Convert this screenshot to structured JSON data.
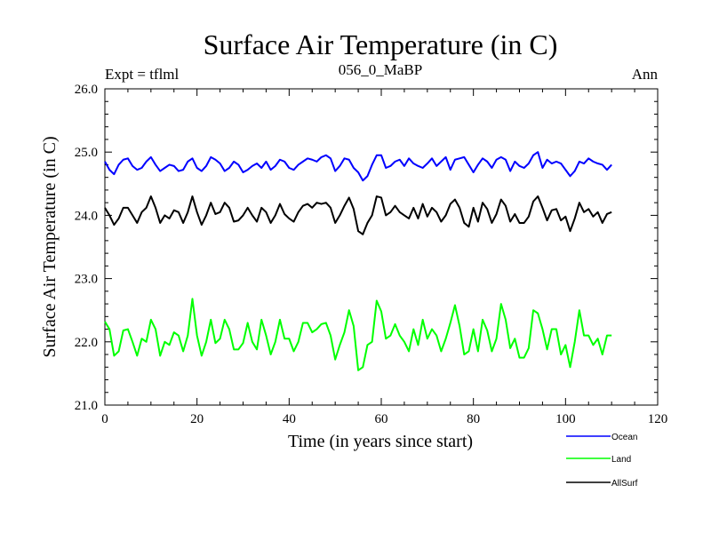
{
  "chart_data": {
    "type": "line",
    "title": "Surface Air Temperature (in C)",
    "subtitle": "056_0_MaBP",
    "left_label": "Expt = tflml",
    "right_label": "Ann",
    "xlabel": "Time (in years since start)",
    "ylabel": "Surface Air Temperature (in C)",
    "xlim": [
      0,
      120
    ],
    "ylim": [
      21.0,
      26.0
    ],
    "x_ticks": [
      0,
      20,
      40,
      60,
      80,
      100,
      120
    ],
    "x_tick_labels": [
      "0",
      "20",
      "40",
      "60",
      "80",
      "100",
      "120"
    ],
    "y_ticks": [
      21.0,
      22.0,
      23.0,
      24.0,
      25.0,
      26.0
    ],
    "y_tick_labels": [
      "21.0",
      "22.0",
      "23.0",
      "24.0",
      "25.0",
      "26.0"
    ],
    "legend_position": "bottom-right, outside plot",
    "x": [
      0,
      1,
      2,
      3,
      4,
      5,
      6,
      7,
      8,
      9,
      10,
      11,
      12,
      13,
      14,
      15,
      16,
      17,
      18,
      19,
      20,
      21,
      22,
      23,
      24,
      25,
      26,
      27,
      28,
      29,
      30,
      31,
      32,
      33,
      34,
      35,
      36,
      37,
      38,
      39,
      40,
      41,
      42,
      43,
      44,
      45,
      46,
      47,
      48,
      49,
      50,
      51,
      52,
      53,
      54,
      55,
      56,
      57,
      58,
      59,
      60,
      61,
      62,
      63,
      64,
      65,
      66,
      67,
      68,
      69,
      70,
      71,
      72,
      73,
      74,
      75,
      76,
      77,
      78,
      79,
      80,
      81,
      82,
      83,
      84,
      85,
      86,
      87,
      88,
      89,
      90,
      91,
      92,
      93,
      94,
      95,
      96,
      97,
      98,
      99,
      100,
      101,
      102,
      103,
      104,
      105,
      106,
      107,
      108,
      109,
      110
    ],
    "series": [
      {
        "name": "Ocean",
        "color": "#0000ff",
        "values": [
          24.85,
          24.72,
          24.65,
          24.8,
          24.88,
          24.9,
          24.78,
          24.72,
          24.75,
          24.85,
          24.92,
          24.8,
          24.7,
          24.75,
          24.8,
          24.78,
          24.7,
          24.72,
          24.85,
          24.9,
          24.75,
          24.7,
          24.78,
          24.92,
          24.88,
          24.82,
          24.7,
          24.75,
          24.85,
          24.8,
          24.68,
          24.72,
          24.78,
          24.82,
          24.75,
          24.85,
          24.72,
          24.78,
          24.88,
          24.85,
          24.75,
          24.72,
          24.8,
          24.85,
          24.9,
          24.88,
          24.85,
          24.92,
          24.95,
          24.9,
          24.7,
          24.78,
          24.9,
          24.88,
          24.75,
          24.68,
          24.55,
          24.62,
          24.8,
          24.95,
          24.95,
          24.75,
          24.78,
          24.85,
          24.88,
          24.78,
          24.9,
          24.82,
          24.78,
          24.75,
          24.82,
          24.9,
          24.78,
          24.85,
          24.92,
          24.72,
          24.88,
          24.9,
          24.92,
          24.8,
          24.68,
          24.8,
          24.9,
          24.85,
          24.75,
          24.88,
          24.92,
          24.88,
          24.7,
          24.85,
          24.78,
          24.75,
          24.82,
          24.95,
          25.0,
          24.75,
          24.88,
          24.82,
          24.85,
          24.82,
          24.72,
          24.62,
          24.7,
          24.85,
          24.82,
          24.9,
          24.85,
          24.82,
          24.8,
          24.72,
          24.8
        ]
      },
      {
        "name": "Land",
        "color": "#00ff00",
        "values": [
          22.32,
          22.2,
          21.78,
          21.85,
          22.18,
          22.2,
          22.0,
          21.78,
          22.05,
          22.0,
          22.35,
          22.2,
          21.78,
          22.0,
          21.95,
          22.15,
          22.1,
          21.85,
          22.1,
          22.68,
          22.1,
          21.78,
          22.0,
          22.35,
          21.98,
          22.05,
          22.35,
          22.2,
          21.88,
          21.88,
          21.98,
          22.3,
          22.0,
          21.88,
          22.35,
          22.1,
          21.8,
          22.0,
          22.35,
          22.05,
          22.05,
          21.85,
          22.0,
          22.3,
          22.3,
          22.15,
          22.2,
          22.28,
          22.3,
          22.1,
          21.72,
          21.95,
          22.15,
          22.5,
          22.25,
          21.55,
          21.6,
          21.95,
          22.0,
          22.65,
          22.48,
          22.05,
          22.1,
          22.28,
          22.1,
          22.0,
          21.85,
          22.2,
          21.95,
          22.35,
          22.05,
          22.2,
          22.1,
          21.85,
          22.05,
          22.3,
          22.58,
          22.25,
          21.8,
          21.85,
          22.2,
          21.85,
          22.35,
          22.18,
          21.85,
          22.05,
          22.6,
          22.35,
          21.9,
          22.05,
          21.75,
          21.75,
          21.9,
          22.5,
          22.45,
          22.2,
          21.88,
          22.2,
          22.2,
          21.8,
          21.95,
          21.6,
          22.0,
          22.5,
          22.1,
          22.1,
          21.95,
          22.05,
          21.8,
          22.1,
          22.1
        ]
      },
      {
        "name": "AllSurf",
        "color": "#000000",
        "values": [
          24.12,
          24.0,
          23.85,
          23.95,
          24.12,
          24.12,
          24.0,
          23.88,
          24.05,
          24.12,
          24.3,
          24.12,
          23.88,
          24.0,
          23.95,
          24.08,
          24.05,
          23.88,
          24.05,
          24.3,
          24.05,
          23.85,
          24.0,
          24.2,
          24.02,
          24.05,
          24.2,
          24.12,
          23.9,
          23.92,
          24.0,
          24.12,
          24.0,
          23.9,
          24.12,
          24.05,
          23.88,
          24.0,
          24.18,
          24.02,
          23.95,
          23.9,
          24.05,
          24.15,
          24.18,
          24.12,
          24.2,
          24.18,
          24.2,
          24.12,
          23.88,
          24.0,
          24.15,
          24.28,
          24.1,
          23.75,
          23.7,
          23.88,
          24.0,
          24.3,
          24.28,
          24.0,
          24.05,
          24.15,
          24.05,
          24.0,
          23.95,
          24.12,
          23.95,
          24.18,
          23.98,
          24.12,
          24.05,
          23.9,
          24.0,
          24.18,
          24.25,
          24.12,
          23.88,
          23.82,
          24.12,
          23.9,
          24.2,
          24.1,
          23.88,
          24.02,
          24.25,
          24.15,
          23.9,
          24.02,
          23.88,
          23.88,
          23.98,
          24.22,
          24.3,
          24.12,
          23.92,
          24.08,
          24.1,
          23.92,
          23.98,
          23.75,
          23.95,
          24.2,
          24.05,
          24.1,
          23.98,
          24.05,
          23.88,
          24.02,
          24.05
        ]
      }
    ]
  }
}
